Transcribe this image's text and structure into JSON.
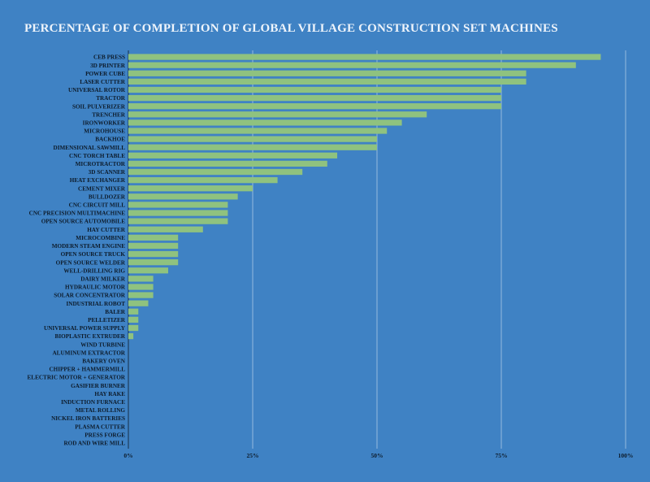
{
  "chart_data": {
    "type": "bar",
    "orientation": "horizontal",
    "title": "PERCENTAGE OF COMPLETION OF GLOBAL VILLAGE CONSTRUCTION SET MACHINES",
    "xlabel": "",
    "ylabel": "",
    "xlim": [
      0,
      100
    ],
    "x_ticks": [
      "0%",
      "25%",
      "50%",
      "75%",
      "100%"
    ],
    "grid": "vertical",
    "legend": "none",
    "colors": {
      "background": "#3f82c4",
      "bar": "#8fc27f",
      "grid": "#b9d2ea",
      "text": "#0d1b2a",
      "title": "#eef4fb"
    },
    "categories": [
      "CEB PRESS",
      "3D PRINTER",
      "POWER CUBE",
      "LASER CUTTER",
      "UNIVERSAL ROTOR",
      "TRACTOR",
      "SOIL PULVERIZER",
      "TRENCHER",
      "IRONWORKER",
      "MICROHOUSE",
      "BACKHOE",
      "DIMENSIONAL SAWMILL",
      "CNC TORCH TABLE",
      "MICROTRACTOR",
      "3D SCANNER",
      "HEAT EXCHANGER",
      "CEMENT MIXER",
      "BULLDOZER",
      "CNC CIRCUIT MILL",
      "CNC PRECISION MULTIMACHINE",
      "OPEN SOURCE AUTOMOBILE",
      "HAY CUTTER",
      "MICROCOMBINE",
      "MODERN STEAM ENGINE",
      "OPEN SOURCE TRUCK",
      "OPEN SOURCE WELDER",
      "WELL-DRILLING RIG",
      "DAIRY MILKER",
      "HYDRAULIC MOTOR",
      "SOLAR CONCENTRATOR",
      "INDUSTRIAL ROBOT",
      "BALER",
      "PELLETIZER",
      "UNIVERSAL POWER SUPPLY",
      "BIOPLASTIC EXTRUDER",
      "WIND TURBINE",
      "ALUMINUM EXTRACTOR",
      "BAKERY OVEN",
      "CHIPPER + HAMMERMILL",
      "ELECTRIC MOTOR + GENERATOR",
      "GASIFIER BURNER",
      "HAY RAKE",
      "INDUCTION FURNACE",
      "METAL ROLLING",
      "NICKEL IRON BATTERIES",
      "PLASMA CUTTER",
      "PRESS FORGE",
      "ROD AND WIRE MILL"
    ],
    "values": [
      95,
      90,
      80,
      80,
      75,
      75,
      75,
      60,
      55,
      52,
      50,
      50,
      42,
      40,
      35,
      30,
      25,
      22,
      20,
      20,
      20,
      15,
      10,
      10,
      10,
      10,
      8,
      5,
      5,
      5,
      4,
      2,
      2,
      2,
      1,
      0,
      0,
      0,
      0,
      0,
      0,
      0,
      0,
      0,
      0,
      0,
      0,
      0
    ]
  }
}
